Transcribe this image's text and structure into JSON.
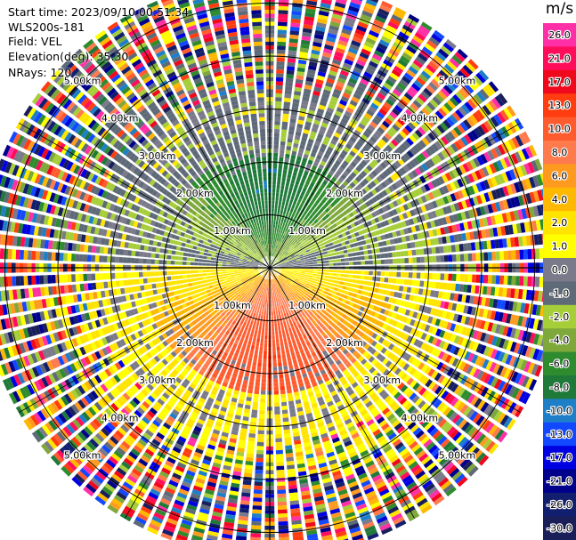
{
  "info": {
    "start_time": "Start time: 2023/09/10 00:51:34",
    "site": "WLS200s-181",
    "field": "Field: VEL",
    "elevation": "Elevation(deg): 35.30",
    "nrays": "NRays: 120"
  },
  "colorbar": {
    "unit": "m/s",
    "ticks": [
      "26.0",
      "21.0",
      "17.0",
      "13.0",
      "10.0",
      "8.0",
      "6.0",
      "4.0",
      "2.0",
      "1.0",
      "0.0",
      "-1.0",
      "-2.0",
      "-4.0",
      "-6.0",
      "-8.0",
      "-10.0",
      "-13.0",
      "-17.0",
      "-21.0",
      "-26.0",
      "-30.0"
    ],
    "colors": [
      "#ff2fa8",
      "#ff0d5a",
      "#f0081d",
      "#ff3d10",
      "#ff5b2e",
      "#ff7b4e",
      "#ff9a20",
      "#ffb800",
      "#ffe400",
      "#ffff00",
      "#7a7a8a",
      "#5e6a78",
      "#a6ce39",
      "#7ea83a",
      "#2e8b2e",
      "#1f7a3a",
      "#1e7fc8",
      "#1248ff",
      "#0000e0",
      "#00008b",
      "#121f6e",
      "#1a1f5a"
    ]
  },
  "chart_data": {
    "type": "ppi_polar",
    "field": "VEL",
    "unit": "m/s",
    "n_rays": 120,
    "range_rings_km": [
      1.0,
      2.0,
      3.0,
      4.0,
      5.0
    ],
    "ring_labels": [
      "1.00km",
      "2.00km",
      "3.00km",
      "4.00km",
      "5.00km"
    ],
    "max_range_km": 5.4,
    "color_scale": [
      26.0,
      21.0,
      17.0,
      13.0,
      10.0,
      8.0,
      6.0,
      4.0,
      2.0,
      1.0,
      0.0,
      -1.0,
      -2.0,
      -4.0,
      -6.0,
      -8.0,
      -10.0,
      -13.0,
      -17.0,
      -21.0,
      -26.0,
      -30.0
    ],
    "pattern": "Approaching velocities (green/blue, -1 to -10 m/s) to the north, receding velocities (yellow/orange, 1 to 13 m/s) to the south within ~2.5 km; noisy multicolour returns beyond ~3.5 km"
  }
}
